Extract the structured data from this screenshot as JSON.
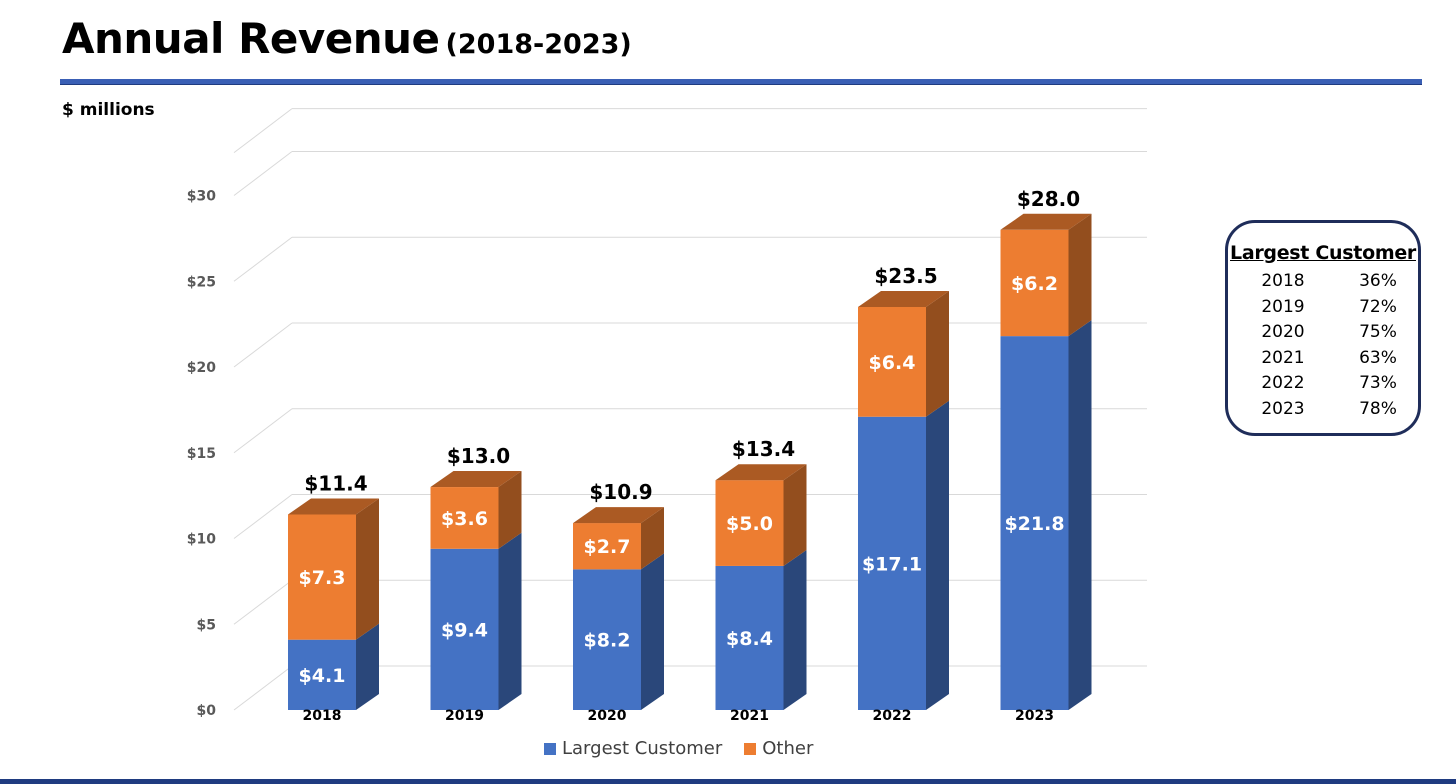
{
  "title": {
    "main": "Annual Revenue",
    "sub": "(2018-2023)"
  },
  "unit_label": "$ millions",
  "colors": {
    "largest_customer": "#4472c4",
    "other": "#ed7d31",
    "title_rule": "#3a5fb5"
  },
  "chart_data": {
    "type": "bar",
    "stacked": true,
    "style": "3d-column",
    "categories": [
      "2018",
      "2019",
      "2020",
      "2021",
      "2022",
      "2023"
    ],
    "series": [
      {
        "name": "Largest Customer",
        "values": [
          4.1,
          9.4,
          8.2,
          8.4,
          17.1,
          21.8
        ],
        "labels": [
          "$4.1",
          "$9.4",
          "$8.2",
          "$8.4",
          "$17.1",
          "$21.8"
        ]
      },
      {
        "name": "Other",
        "values": [
          7.3,
          3.6,
          2.7,
          5.0,
          6.4,
          6.2
        ],
        "labels": [
          "$7.3",
          "$3.6",
          "$2.7",
          "$5.0",
          "$6.4",
          "$6.2"
        ]
      }
    ],
    "totals": [
      11.4,
      13.0,
      10.9,
      13.4,
      23.5,
      28.0
    ],
    "total_labels": [
      "$11.4",
      "$13.0",
      "$10.9",
      "$13.4",
      "$23.5",
      "$28.0"
    ],
    "ylim": [
      0,
      32.5
    ],
    "yticks": [
      0,
      5,
      10,
      15,
      20,
      25,
      30
    ],
    "ytick_labels": [
      "$0",
      "$5",
      "$10",
      "$15",
      "$20",
      "$25",
      "$30"
    ],
    "xlabel": "",
    "ylabel": "",
    "grid": true,
    "legend": "bottom"
  },
  "legend": {
    "largest_customer": "Largest Customer",
    "other": "Other"
  },
  "largest_customer_table": {
    "title": "Largest Customer",
    "rows": [
      {
        "year": "2018",
        "pct": "36%"
      },
      {
        "year": "2019",
        "pct": "72%"
      },
      {
        "year": "2020",
        "pct": "75%"
      },
      {
        "year": "2021",
        "pct": "63%"
      },
      {
        "year": "2022",
        "pct": "73%"
      },
      {
        "year": "2023",
        "pct": "78%"
      }
    ]
  }
}
